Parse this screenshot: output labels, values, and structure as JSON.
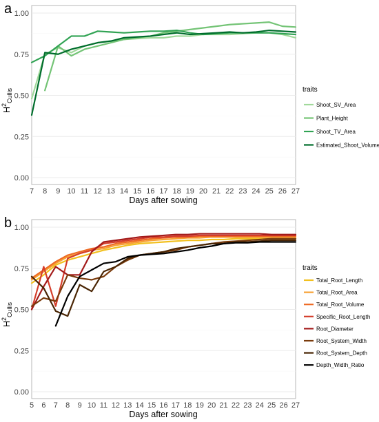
{
  "panels": [
    {
      "letter": "a",
      "xlabel": "Days after sowing",
      "ylabel_main": "H",
      "ylabel_sup": "2",
      "ylabel_sub": "Cullis",
      "legend_title": "traits"
    },
    {
      "letter": "b",
      "xlabel": "Days after sowing",
      "ylabel_main": "H",
      "ylabel_sup": "2",
      "ylabel_sub": "Cullis",
      "legend_title": "traits"
    }
  ],
  "chart_data": [
    {
      "type": "line",
      "title": "",
      "xlabel": "Days after sowing",
      "ylabel": "H²Cullis",
      "xlim": [
        7,
        27
      ],
      "ylim": [
        0,
        1
      ],
      "x_ticks": [
        7,
        8,
        9,
        10,
        11,
        12,
        13,
        14,
        15,
        16,
        17,
        18,
        19,
        20,
        21,
        22,
        23,
        24,
        25,
        26,
        27
      ],
      "y_ticks": [
        0.0,
        0.25,
        0.5,
        0.75,
        1.0
      ],
      "y_tick_labels": [
        "0.00",
        "0.25",
        "0.50",
        "0.75",
        "1.00"
      ],
      "grid": true,
      "legend_placement": "right",
      "legend_title": "traits",
      "x": [
        7,
        8,
        9,
        10,
        11,
        12,
        13,
        14,
        15,
        16,
        17,
        18,
        19,
        20,
        21,
        22,
        23,
        24,
        25,
        26,
        27
      ],
      "series": [
        {
          "name": "Shoot_SV_Area",
          "color": "#a1d99b",
          "values": [
            0.48,
            0.75,
            0.79,
            0.76,
            0.8,
            0.82,
            0.83,
            0.84,
            0.845,
            0.85,
            0.85,
            0.86,
            0.86,
            0.87,
            0.87,
            0.87,
            0.875,
            0.88,
            0.88,
            0.87,
            0.85
          ]
        },
        {
          "name": "Plant_Height",
          "color": "#74c476",
          "values": [
            null,
            0.53,
            0.8,
            0.74,
            0.78,
            0.8,
            0.82,
            0.84,
            0.85,
            0.86,
            0.88,
            0.89,
            0.9,
            0.91,
            0.92,
            0.93,
            0.935,
            0.94,
            0.945,
            0.92,
            0.915
          ]
        },
        {
          "name": "Shoot_TV_Area",
          "color": "#31a354",
          "values": [
            0.7,
            0.74,
            0.8,
            0.86,
            0.86,
            0.89,
            0.885,
            0.88,
            0.885,
            0.89,
            0.89,
            0.895,
            0.88,
            0.87,
            0.875,
            0.88,
            0.88,
            0.88,
            0.88,
            0.875,
            0.87
          ]
        },
        {
          "name": "Estimated_Shoot_Volume",
          "color": "#006d2c",
          "values": [
            0.38,
            0.76,
            0.75,
            0.78,
            0.8,
            0.82,
            0.83,
            0.85,
            0.855,
            0.86,
            0.87,
            0.88,
            0.87,
            0.875,
            0.88,
            0.885,
            0.88,
            0.885,
            0.895,
            0.89,
            0.885
          ]
        }
      ]
    },
    {
      "type": "line",
      "title": "",
      "xlabel": "Days after sowing",
      "ylabel": "H²Cullis",
      "xlim": [
        5,
        27
      ],
      "ylim": [
        0,
        1
      ],
      "x_ticks": [
        5,
        6,
        7,
        8,
        9,
        10,
        11,
        12,
        13,
        14,
        15,
        16,
        17,
        18,
        19,
        20,
        21,
        22,
        23,
        24,
        25,
        26,
        27
      ],
      "y_ticks": [
        0.0,
        0.25,
        0.5,
        0.75,
        1.0
      ],
      "y_tick_labels": [
        "0.00",
        "0.25",
        "0.50",
        "0.75",
        "1.00"
      ],
      "grid": true,
      "legend_placement": "right",
      "legend_title": "traits",
      "x": [
        5,
        6,
        7,
        8,
        9,
        10,
        11,
        12,
        13,
        14,
        15,
        16,
        17,
        18,
        19,
        20,
        21,
        22,
        23,
        24,
        25,
        26,
        27
      ],
      "series": [
        {
          "name": "Total_Root_Length",
          "color": "#f2c01e",
          "values": [
            0.66,
            0.71,
            0.77,
            0.8,
            0.82,
            0.84,
            0.86,
            0.875,
            0.89,
            0.9,
            0.905,
            0.91,
            0.915,
            0.92,
            0.92,
            0.925,
            0.925,
            0.93,
            0.93,
            0.93,
            0.93,
            0.93,
            0.93
          ]
        },
        {
          "name": "Total_Root_Area",
          "color": "#f7a133",
          "values": [
            0.68,
            0.73,
            0.78,
            0.82,
            0.84,
            0.86,
            0.87,
            0.89,
            0.9,
            0.91,
            0.92,
            0.925,
            0.93,
            0.935,
            0.935,
            0.94,
            0.94,
            0.94,
            0.94,
            0.94,
            0.94,
            0.94,
            0.94
          ]
        },
        {
          "name": "Total_Root_Volume",
          "color": "#ee6a24",
          "values": [
            0.69,
            0.74,
            0.79,
            0.83,
            0.85,
            0.87,
            0.88,
            0.9,
            0.91,
            0.92,
            0.93,
            0.935,
            0.94,
            0.94,
            0.945,
            0.945,
            0.945,
            0.945,
            0.945,
            0.945,
            0.945,
            0.945,
            0.945
          ]
        },
        {
          "name": "Specific_Root_Length",
          "color": "#d43d2a",
          "values": [
            0.5,
            0.76,
            0.52,
            0.81,
            0.84,
            0.86,
            0.9,
            0.91,
            0.92,
            0.93,
            0.94,
            0.94,
            0.945,
            0.945,
            0.95,
            0.95,
            0.95,
            0.95,
            0.95,
            0.95,
            0.95,
            0.95,
            0.95
          ]
        },
        {
          "name": "Root_Diameter",
          "color": "#a31a1a",
          "values": [
            0.5,
            0.64,
            0.76,
            0.71,
            0.71,
            0.85,
            0.91,
            0.92,
            0.93,
            0.94,
            0.945,
            0.95,
            0.955,
            0.955,
            0.96,
            0.96,
            0.96,
            0.96,
            0.96,
            0.96,
            0.955,
            0.955,
            0.955
          ]
        },
        {
          "name": "Root_System_Width",
          "color": "#7a3b0c",
          "values": [
            0.52,
            0.57,
            0.55,
            0.71,
            0.69,
            0.68,
            0.7,
            0.76,
            0.8,
            0.83,
            0.84,
            0.85,
            0.86,
            0.88,
            0.89,
            0.9,
            0.91,
            0.915,
            0.92,
            0.925,
            0.93,
            0.93,
            0.93
          ]
        },
        {
          "name": "Root_System_Depth",
          "color": "#4a2605",
          "values": [
            0.7,
            0.63,
            0.49,
            0.46,
            0.65,
            0.61,
            0.73,
            0.76,
            0.81,
            0.83,
            0.84,
            0.85,
            0.87,
            0.88,
            0.89,
            0.9,
            0.9,
            0.91,
            0.91,
            0.915,
            0.92,
            0.92,
            0.92
          ]
        },
        {
          "name": "Depth_Width_Ratio",
          "color": "#000000",
          "values": [
            null,
            null,
            0.4,
            0.58,
            0.7,
            0.74,
            0.78,
            0.79,
            0.82,
            0.83,
            0.835,
            0.84,
            0.85,
            0.86,
            0.875,
            0.885,
            0.9,
            0.905,
            0.905,
            0.91,
            0.91,
            0.91,
            0.91
          ]
        }
      ]
    }
  ]
}
